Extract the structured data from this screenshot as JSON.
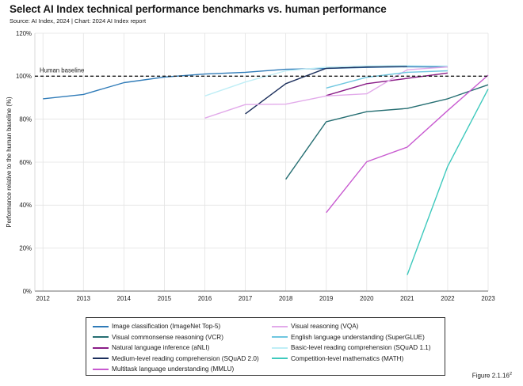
{
  "title": "Select AI Index technical performance benchmarks vs. human performance",
  "source": "Source: AI Index, 2024 | Chart: 2024 AI Index report",
  "figure_label": "Figure 2.1.16",
  "figure_sup": "2",
  "chart_data": {
    "type": "line",
    "ylabel": "Performance relative to the human baseline (%)",
    "xlabel": "",
    "x_ticks": [
      "2012",
      "2013",
      "2014",
      "2015",
      "2016",
      "2017",
      "2018",
      "2019",
      "2020",
      "2021",
      "2022",
      "2023"
    ],
    "y_ticks": [
      "0%",
      "20%",
      "40%",
      "60%",
      "80%",
      "100%",
      "120%"
    ],
    "xlim": [
      2011.8,
      2023
    ],
    "ylim": [
      0,
      120
    ],
    "grid": true,
    "baseline": {
      "label": "Human baseline",
      "value": 100
    },
    "series": [
      {
        "name": "Image classification (ImageNet Top-5)",
        "color": "#2f7bb8",
        "points": [
          [
            2012,
            89.5
          ],
          [
            2013,
            91.5
          ],
          [
            2014,
            97
          ],
          [
            2015,
            99.6
          ],
          [
            2016,
            101
          ],
          [
            2017,
            101.8
          ],
          [
            2018,
            103.2
          ],
          [
            2019,
            103.6
          ],
          [
            2020,
            104.1
          ],
          [
            2021,
            104.4
          ],
          [
            2022,
            104.3
          ]
        ]
      },
      {
        "name": "Visual commonsense reasoning (VCR)",
        "color": "#256e72",
        "points": [
          [
            2018,
            52
          ],
          [
            2019,
            78.8
          ],
          [
            2020,
            83.5
          ],
          [
            2021,
            85
          ],
          [
            2022,
            89.5
          ],
          [
            2023,
            96
          ]
        ]
      },
      {
        "name": "Natural language inference (aNLI)",
        "color": "#8a1d87",
        "points": [
          [
            2019,
            91
          ],
          [
            2020,
            96.5
          ],
          [
            2021,
            99
          ],
          [
            2022,
            101.5
          ]
        ]
      },
      {
        "name": "Medium-level reading comprehension (SQuAD 2.0)",
        "color": "#1c2f5c",
        "points": [
          [
            2017,
            82.5
          ],
          [
            2018,
            96.5
          ],
          [
            2019,
            103.7
          ],
          [
            2020,
            104.3
          ],
          [
            2021,
            104.6
          ]
        ]
      },
      {
        "name": "Multitask language understanding (MMLU)",
        "color": "#c85ad0",
        "points": [
          [
            2019,
            36.5
          ],
          [
            2020,
            60.2
          ],
          [
            2021,
            67
          ],
          [
            2022,
            84
          ],
          [
            2023,
            100.5
          ]
        ]
      },
      {
        "name": "Visual reasoning (VQA)",
        "color": "#e2aaea",
        "points": [
          [
            2016,
            80.5
          ],
          [
            2017,
            86.8
          ],
          [
            2018,
            87
          ],
          [
            2019,
            90.8
          ],
          [
            2020,
            91.8
          ],
          [
            2021,
            103
          ],
          [
            2022,
            104.3
          ]
        ]
      },
      {
        "name": "English language understanding (SuperGLUE)",
        "color": "#6fc7e0",
        "points": [
          [
            2019,
            94.5
          ],
          [
            2020,
            99.5
          ],
          [
            2021,
            101.8
          ],
          [
            2022,
            102.5
          ]
        ]
      },
      {
        "name": "Basic-level reading comprehension (SQuAD 1.1)",
        "color": "#bfeef6",
        "points": [
          [
            2016,
            90.8
          ],
          [
            2017,
            97.3
          ],
          [
            2018,
            102.5
          ],
          [
            2019,
            104.2
          ],
          [
            2020,
            104.8
          ],
          [
            2021,
            105
          ],
          [
            2022,
            104.8
          ]
        ]
      },
      {
        "name": "Competition-level mathematics (MATH)",
        "color": "#3ec9bd",
        "points": [
          [
            2021,
            7.5
          ],
          [
            2022,
            58
          ],
          [
            2023,
            94
          ]
        ]
      }
    ]
  }
}
